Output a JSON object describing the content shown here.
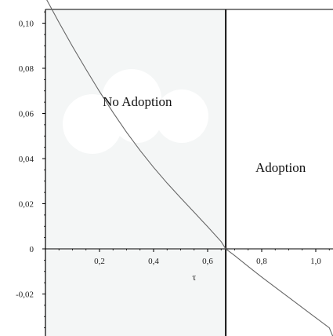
{
  "chart_data": {
    "type": "line",
    "title": "",
    "xlabel": "τ",
    "ylabel": "",
    "xlim": [
      0,
      1.0
    ],
    "ylim": [
      -0.04,
      0.11
    ],
    "grid": false,
    "x_ticks": [
      {
        "value": 0.2,
        "label": "0,2"
      },
      {
        "value": 0.4,
        "label": "0,4"
      },
      {
        "value": 0.6,
        "label": "0,6"
      },
      {
        "value": 0.8,
        "label": "0,8"
      },
      {
        "value": 1.0,
        "label": "1,0"
      }
    ],
    "y_ticks": [
      {
        "value": -0.02,
        "label": "-0,02"
      },
      {
        "value": 0,
        "label": "0"
      },
      {
        "value": 0.02,
        "label": "0,02"
      },
      {
        "value": 0.04,
        "label": "0,04"
      },
      {
        "value": 0.06,
        "label": "0,06"
      },
      {
        "value": 0.08,
        "label": "0,08"
      },
      {
        "value": 0.1,
        "label": "0,10"
      }
    ],
    "series": [
      {
        "x": [
          0.0,
          0.05,
          0.1,
          0.15,
          0.2,
          0.25,
          0.3,
          0.35,
          0.4,
          0.45,
          0.5,
          0.55,
          0.6,
          0.65,
          0.667,
          0.7,
          0.75,
          0.8,
          0.85,
          0.9,
          0.95,
          1.0,
          1.05,
          1.1
        ],
        "y": [
          0.1114,
          0.1003,
          0.0897,
          0.0795,
          0.0697,
          0.0604,
          0.0517,
          0.0436,
          0.0361,
          0.0291,
          0.0226,
          0.0162,
          0.0098,
          0.0032,
          0.0,
          -0.003,
          -0.0078,
          -0.0125,
          -0.017,
          -0.0215,
          -0.026,
          -0.0305,
          -0.035,
          -0.039
        ]
      }
    ],
    "threshold_x": 0.667,
    "regions": [
      {
        "label": "No Adoption"
      },
      {
        "label": "Adoption"
      }
    ]
  }
}
